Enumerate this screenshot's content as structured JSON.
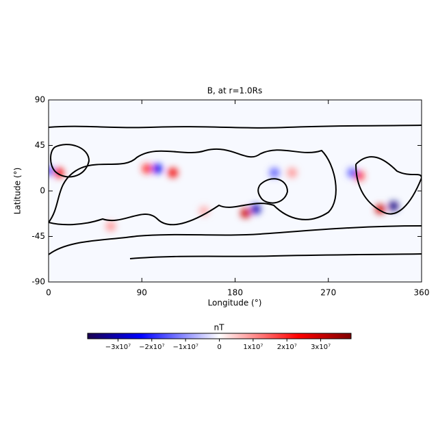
{
  "chart_data": {
    "type": "map",
    "title": "B, at r=1.0Rs",
    "x_label": "Longitude (°)",
    "y_label": "Latitude (°)",
    "xlim": [
      0,
      360
    ],
    "ylim": [
      -90,
      90
    ],
    "xticks": [
      0,
      90,
      180,
      270,
      360
    ],
    "yticks": [
      90,
      45,
      0,
      -45,
      -90
    ],
    "spots": {
      "x": [
        10,
        0,
        95,
        105,
        120,
        190,
        200,
        218,
        235,
        300,
        293,
        320,
        333,
        60,
        150
      ],
      "y": [
        18,
        20,
        22,
        22,
        18,
        -22,
        -18,
        18,
        18,
        15,
        18,
        -18,
        -15,
        -35,
        -20
      ],
      "values": [
        25000000,
        -15000000,
        20000000,
        -25000000,
        25000000,
        30000000,
        -30000000,
        -15000000,
        10000000,
        20000000,
        -15000000,
        30000000,
        -35000000,
        10000000,
        8000000
      ]
    },
    "colorbar": {
      "label": "nT",
      "lim": [
        -39000000,
        39000000
      ],
      "ticks": [
        {
          "value": -30000000,
          "label": "−3x10⁷"
        },
        {
          "value": -20000000,
          "label": "−2x10⁷"
        },
        {
          "value": -10000000,
          "label": "−1x10⁷"
        },
        0,
        {
          "value": 10000000,
          "label": "1x10⁷"
        },
        {
          "value": 20000000,
          "label": "2x10⁷"
        },
        {
          "value": 30000000,
          "label": "3x10⁷"
        }
      ]
    }
  }
}
